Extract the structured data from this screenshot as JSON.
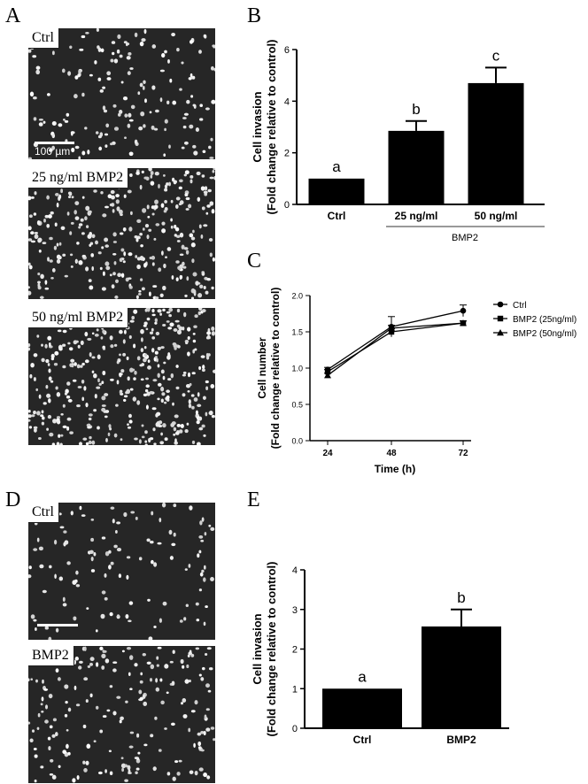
{
  "panels": {
    "A": {
      "letter": "A",
      "images": [
        {
          "label": "Ctrl",
          "scale_text": "100 µm",
          "density": 170,
          "seed": 11
        },
        {
          "label": "25 ng/ml BMP2",
          "density": 330,
          "seed": 23
        },
        {
          "label": "50 ng/ml BMP2",
          "density": 420,
          "seed": 37
        }
      ]
    },
    "D": {
      "letter": "D",
      "images": [
        {
          "label": "Ctrl",
          "density": 120,
          "seed": 51
        },
        {
          "label": "BMP2",
          "density": 200,
          "seed": 67
        }
      ]
    },
    "B": {
      "letter": "B"
    },
    "C": {
      "letter": "C"
    },
    "E": {
      "letter": "E"
    }
  },
  "colors": {
    "bar": "#000000",
    "micro_bg": "#262626",
    "cell": "#e8e8e8",
    "bracket_line": "#999999"
  },
  "chart_data": [
    {
      "id": "B",
      "type": "bar",
      "categories": [
        "Ctrl",
        "25 ng/ml",
        "50 ng/ml"
      ],
      "values": [
        1.0,
        2.85,
        4.7
      ],
      "errors": [
        0.0,
        0.38,
        0.6
      ],
      "sig_letters": [
        "a",
        "b",
        "c"
      ],
      "group_label": "BMP2",
      "ylabel_line1": "Cell invasion",
      "ylabel_line2": "(Fold change relative to control)",
      "ylim": [
        0,
        6
      ],
      "yticks": [
        0,
        2,
        4,
        6
      ]
    },
    {
      "id": "C",
      "type": "line",
      "x": [
        24,
        48,
        72
      ],
      "xticks": [
        "24",
        "48",
        "72"
      ],
      "xlabel": "Time (h)",
      "ylabel_line1": "Cell number",
      "ylabel_line2": "(Fold change relative to control)",
      "ylim": [
        0,
        2.0
      ],
      "yticks": [
        "0.0",
        "0.5",
        "1.0",
        "1.5",
        "2.0"
      ],
      "legend_position": "right",
      "series": [
        {
          "name": "Ctrl",
          "marker": "circle",
          "values": [
            0.98,
            1.57,
            1.79
          ],
          "errors": [
            0.03,
            0.14,
            0.08
          ]
        },
        {
          "name": "BMP2 (25ng/ml)",
          "marker": "square",
          "values": [
            0.95,
            1.5,
            1.62
          ],
          "errors": [
            0.03,
            0.04,
            0.03
          ]
        },
        {
          "name": "BMP2 (50ng/ml)",
          "marker": "triangle",
          "values": [
            0.9,
            1.55,
            1.62
          ],
          "errors": [
            0.03,
            0.04,
            0.03
          ]
        }
      ]
    },
    {
      "id": "E",
      "type": "bar",
      "categories": [
        "Ctrl",
        "BMP2"
      ],
      "values": [
        1.0,
        2.57
      ],
      "errors": [
        0.0,
        0.43
      ],
      "sig_letters": [
        "a",
        "b"
      ],
      "ylabel_line1": "Cell invasion",
      "ylabel_line2": "(Fold change relative to control)",
      "ylim": [
        0,
        4
      ],
      "yticks": [
        0,
        1,
        2,
        3,
        4
      ]
    }
  ]
}
